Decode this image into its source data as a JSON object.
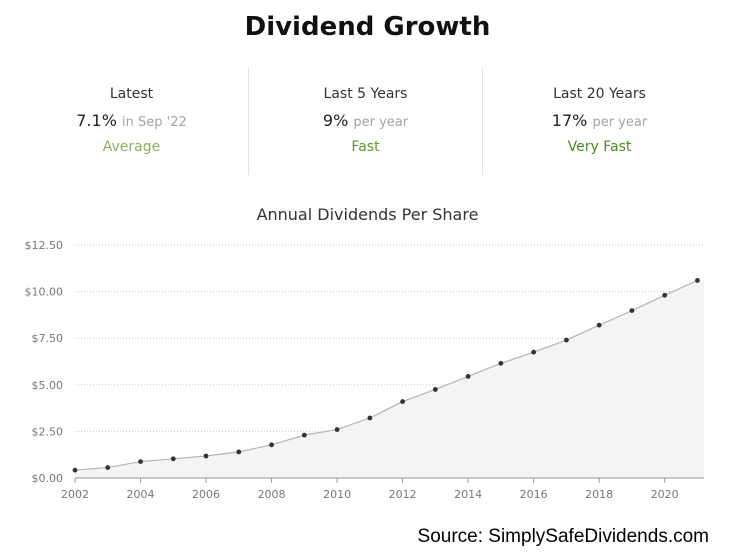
{
  "title": "Dividend Growth",
  "stats": [
    {
      "label": "Latest",
      "value": "7.1%",
      "suffix": "in Sep '22",
      "rating": "Average",
      "rating_color": "#8ab35a"
    },
    {
      "label": "Last 5 Years",
      "value": "9%",
      "suffix": "per year",
      "rating": "Fast",
      "rating_color": "#5f9a2c"
    },
    {
      "label": "Last 20 Years",
      "value": "17%",
      "suffix": "per year",
      "rating": "Very Fast",
      "rating_color": "#4a8a22"
    }
  ],
  "source": "Source: SimplySafeDividends.com",
  "chart_data": {
    "type": "area",
    "title": "Annual Dividends Per Share",
    "xlabel": "",
    "ylabel": "",
    "x": [
      2002,
      2003,
      2004,
      2005,
      2006,
      2007,
      2008,
      2009,
      2010,
      2011,
      2012,
      2013,
      2014,
      2015,
      2016,
      2017,
      2018,
      2019,
      2020,
      2021
    ],
    "values": [
      0.42,
      0.56,
      0.88,
      1.03,
      1.18,
      1.4,
      1.78,
      2.3,
      2.6,
      3.22,
      4.1,
      4.75,
      5.45,
      6.15,
      6.75,
      7.4,
      8.2,
      8.98,
      9.8,
      10.6
    ],
    "ylim": [
      0,
      12.5
    ],
    "xlim": [
      2002,
      2021.2
    ],
    "x_ticks": [
      2002,
      2004,
      2006,
      2008,
      2010,
      2012,
      2014,
      2016,
      2018,
      2020
    ],
    "y_ticks": [
      "$0.00",
      "$2.50",
      "$5.00",
      "$7.50",
      "$10.00",
      "$12.50"
    ],
    "y_tick_values": [
      0,
      2.5,
      5,
      7.5,
      10,
      12.5
    ],
    "grid": true,
    "colors": {
      "line": "#b5b5b5",
      "fill": "#f4f4f4",
      "point": "#333333",
      "grid": "#c8c8c8",
      "axis": "#999999",
      "tick_text": "#777777"
    }
  }
}
